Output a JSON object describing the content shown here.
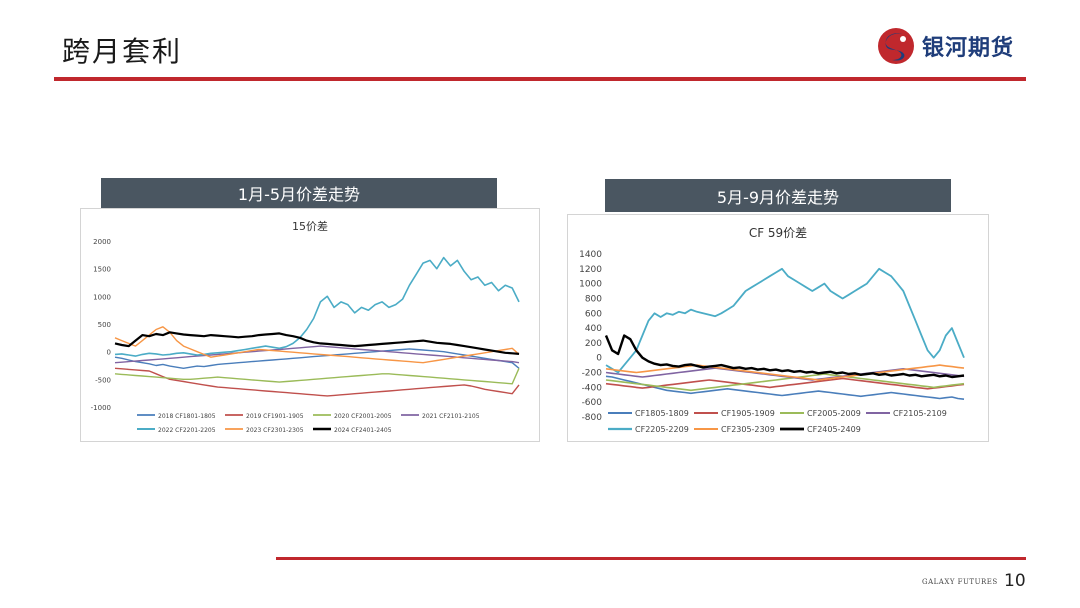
{
  "page": {
    "title": "跨月套利",
    "brand": "银河期货",
    "footer_brand": "GALAXY FUTURES",
    "page_number": "10",
    "colors": {
      "accent": "#c0282d",
      "banner": "#4a5661",
      "brand": "#1f3d7a"
    }
  },
  "left_banner": "1月-5月价差走势",
  "right_banner": "5月-9月价差走势",
  "chart_data": [
    {
      "type": "line",
      "title": "15价差",
      "xlabel": "",
      "ylabel": "",
      "ylim": [
        -1000,
        2000
      ],
      "yticks": [
        -1000,
        -500,
        0,
        500,
        1000,
        1500,
        2000
      ],
      "grid": false,
      "legend": "bottom",
      "x_points": 60,
      "series": [
        {
          "name": "2018 CF1801-1805",
          "color": "#4a7ebb",
          "width": 1.4,
          "values": [
            -100,
            -120,
            -150,
            -180,
            -200,
            -220,
            -250,
            -230,
            -260,
            -280,
            -300,
            -280,
            -260,
            -270,
            -250,
            -230,
            -220,
            -210,
            -200,
            -190,
            -180,
            -170,
            -160,
            -150,
            -140,
            -130,
            -120,
            -110,
            -100,
            -90,
            -80,
            -70,
            -60,
            -50,
            -40,
            -30,
            -20,
            -10,
            0,
            10,
            20,
            30,
            40,
            50,
            40,
            30,
            20,
            10,
            0,
            -20,
            -40,
            -60,
            -80,
            -100,
            -120,
            -140,
            -160,
            -180,
            -200,
            -300
          ]
        },
        {
          "name": "2019 CF1901-1905",
          "color": "#c0504d",
          "width": 1.4,
          "values": [
            -300,
            -310,
            -320,
            -330,
            -340,
            -350,
            -400,
            -450,
            -500,
            -520,
            -540,
            -560,
            -580,
            -600,
            -620,
            -640,
            -650,
            -660,
            -670,
            -680,
            -690,
            -700,
            -710,
            -720,
            -730,
            -740,
            -750,
            -760,
            -770,
            -780,
            -790,
            -800,
            -790,
            -780,
            -770,
            -760,
            -750,
            -740,
            -730,
            -720,
            -710,
            -700,
            -690,
            -680,
            -670,
            -660,
            -650,
            -640,
            -630,
            -620,
            -610,
            -600,
            -620,
            -650,
            -680,
            -700,
            -720,
            -740,
            -760,
            -600
          ]
        },
        {
          "name": "2020 CF2001-2005",
          "color": "#9bbb59",
          "width": 1.4,
          "values": [
            -400,
            -410,
            -420,
            -430,
            -440,
            -450,
            -460,
            -470,
            -480,
            -490,
            -500,
            -500,
            -490,
            -480,
            -470,
            -460,
            -470,
            -480,
            -490,
            -500,
            -510,
            -520,
            -530,
            -540,
            -550,
            -540,
            -530,
            -520,
            -510,
            -500,
            -490,
            -480,
            -470,
            -460,
            -450,
            -440,
            -430,
            -420,
            -410,
            -400,
            -400,
            -410,
            -420,
            -430,
            -440,
            -450,
            -460,
            -470,
            -480,
            -490,
            -500,
            -510,
            -520,
            -530,
            -540,
            -550,
            -560,
            -570,
            -580,
            -300
          ]
        },
        {
          "name": "2021 CF2101-2105",
          "color": "#8064a2",
          "width": 1.4,
          "values": [
            -200,
            -190,
            -180,
            -170,
            -160,
            -150,
            -140,
            -130,
            -120,
            -110,
            -100,
            -90,
            -80,
            -70,
            -60,
            -50,
            -40,
            -30,
            -20,
            -10,
            0,
            10,
            20,
            30,
            40,
            50,
            60,
            70,
            80,
            90,
            100,
            90,
            80,
            70,
            60,
            50,
            40,
            30,
            20,
            10,
            0,
            -10,
            -20,
            -30,
            -40,
            -50,
            -60,
            -70,
            -80,
            -90,
            -100,
            -110,
            -120,
            -130,
            -140,
            -150,
            -160,
            -170,
            -180,
            -200
          ]
        },
        {
          "name": "2022 CF2201-2205",
          "color": "#4bacc6",
          "width": 1.6,
          "values": [
            -50,
            -40,
            -60,
            -80,
            -50,
            -30,
            -40,
            -60,
            -50,
            -30,
            -20,
            -40,
            -60,
            -50,
            -30,
            -20,
            -10,
            0,
            20,
            40,
            60,
            80,
            100,
            80,
            60,
            90,
            150,
            250,
            400,
            600,
            900,
            1000,
            800,
            900,
            850,
            700,
            800,
            750,
            850,
            900,
            800,
            850,
            950,
            1200,
            1400,
            1600,
            1650,
            1500,
            1700,
            1550,
            1650,
            1450,
            1300,
            1350,
            1200,
            1250,
            1100,
            1200,
            1150,
            900
          ]
        },
        {
          "name": "2023 CF2301-2305",
          "color": "#f79646",
          "width": 1.4,
          "values": [
            250,
            200,
            150,
            100,
            200,
            300,
            400,
            450,
            350,
            200,
            100,
            50,
            0,
            -50,
            -100,
            -80,
            -60,
            -40,
            -20,
            0,
            20,
            40,
            30,
            20,
            10,
            0,
            -10,
            -20,
            -30,
            -40,
            -50,
            -60,
            -70,
            -80,
            -90,
            -100,
            -110,
            -120,
            -130,
            -140,
            -150,
            -160,
            -170,
            -180,
            -190,
            -200,
            -180,
            -160,
            -140,
            -120,
            -100,
            -80,
            -60,
            -40,
            -20,
            0,
            20,
            40,
            60,
            -50
          ]
        },
        {
          "name": "2024 CF2401-2405",
          "color": "#000000",
          "width": 2.2,
          "values": [
            150,
            120,
            100,
            200,
            300,
            280,
            320,
            300,
            350,
            330,
            310,
            300,
            290,
            280,
            300,
            290,
            280,
            270,
            260,
            270,
            280,
            300,
            310,
            320,
            330,
            300,
            280,
            250,
            200,
            170,
            150,
            140,
            130,
            120,
            110,
            100,
            110,
            120,
            130,
            140,
            150,
            160,
            170,
            180,
            190,
            200,
            180,
            160,
            150,
            140,
            120,
            100,
            80,
            60,
            40,
            20,
            0,
            -20,
            -30,
            -40
          ]
        }
      ]
    },
    {
      "type": "line",
      "title": "CF 59价差",
      "xlabel": "",
      "ylabel": "",
      "ylim": [
        -800,
        1400
      ],
      "yticks": [
        -800,
        -600,
        -400,
        -200,
        0,
        200,
        400,
        600,
        800,
        1000,
        1200,
        1400
      ],
      "grid": false,
      "legend": "bottom",
      "x_points": 60,
      "series": [
        {
          "name": "CF1805-1809",
          "color": "#4a7ebb",
          "width": 1.6,
          "values": [
            -250,
            -260,
            -280,
            -300,
            -320,
            -340,
            -360,
            -380,
            -400,
            -420,
            -440,
            -450,
            -460,
            -470,
            -480,
            -470,
            -460,
            -450,
            -440,
            -430,
            -420,
            -430,
            -440,
            -450,
            -460,
            -470,
            -480,
            -490,
            -500,
            -510,
            -500,
            -490,
            -480,
            -470,
            -460,
            -450,
            -460,
            -470,
            -480,
            -490,
            -500,
            -510,
            -520,
            -510,
            -500,
            -490,
            -480,
            -470,
            -480,
            -490,
            -500,
            -510,
            -520,
            -530,
            -540,
            -550,
            -540,
            -530,
            -550,
            -560
          ]
        },
        {
          "name": "CF1905-1909",
          "color": "#c0504d",
          "width": 1.6,
          "values": [
            -350,
            -360,
            -370,
            -380,
            -390,
            -400,
            -410,
            -400,
            -390,
            -380,
            -370,
            -360,
            -350,
            -340,
            -330,
            -320,
            -310,
            -300,
            -310,
            -320,
            -330,
            -340,
            -350,
            -360,
            -370,
            -380,
            -390,
            -400,
            -390,
            -380,
            -370,
            -360,
            -350,
            -340,
            -330,
            -320,
            -310,
            -300,
            -290,
            -280,
            -290,
            -300,
            -310,
            -320,
            -330,
            -340,
            -350,
            -360,
            -370,
            -380,
            -390,
            -400,
            -410,
            -420,
            -410,
            -400,
            -390,
            -380,
            -370,
            -360
          ]
        },
        {
          "name": "CF2005-2009",
          "color": "#9bbb59",
          "width": 1.6,
          "values": [
            -300,
            -310,
            -320,
            -330,
            -340,
            -350,
            -360,
            -370,
            -380,
            -390,
            -400,
            -410,
            -420,
            -430,
            -440,
            -430,
            -420,
            -410,
            -400,
            -390,
            -380,
            -370,
            -360,
            -350,
            -340,
            -330,
            -320,
            -310,
            -300,
            -290,
            -280,
            -270,
            -260,
            -250,
            -240,
            -230,
            -220,
            -230,
            -240,
            -250,
            -260,
            -270,
            -280,
            -290,
            -300,
            -310,
            -320,
            -330,
            -340,
            -350,
            -360,
            -370,
            -380,
            -390,
            -400,
            -390,
            -380,
            -370,
            -360,
            -350
          ]
        },
        {
          "name": "CF2105-2109",
          "color": "#8064a2",
          "width": 1.6,
          "values": [
            -200,
            -210,
            -220,
            -230,
            -240,
            -250,
            -260,
            -250,
            -240,
            -230,
            -220,
            -210,
            -200,
            -190,
            -180,
            -170,
            -160,
            -150,
            -140,
            -150,
            -160,
            -170,
            -180,
            -190,
            -200,
            -210,
            -220,
            -230,
            -240,
            -250,
            -260,
            -270,
            -280,
            -290,
            -300,
            -290,
            -280,
            -270,
            -260,
            -250,
            -240,
            -230,
            -220,
            -210,
            -200,
            -190,
            -180,
            -170,
            -160,
            -150,
            -160,
            -170,
            -180,
            -190,
            -200,
            -210,
            -220,
            -230,
            -240,
            -250
          ]
        },
        {
          "name": "CF2205-2209",
          "color": "#4bacc6",
          "width": 1.8,
          "values": [
            -100,
            -150,
            -200,
            -100,
            0,
            100,
            300,
            500,
            600,
            550,
            600,
            580,
            620,
            600,
            650,
            620,
            600,
            580,
            560,
            600,
            650,
            700,
            800,
            900,
            950,
            1000,
            1050,
            1100,
            1150,
            1200,
            1100,
            1050,
            1000,
            950,
            900,
            950,
            1000,
            900,
            850,
            800,
            850,
            900,
            950,
            1000,
            1100,
            1200,
            1150,
            1100,
            1000,
            900,
            700,
            500,
            300,
            100,
            0,
            100,
            300,
            400,
            200,
            0
          ]
        },
        {
          "name": "CF2305-2309",
          "color": "#f79646",
          "width": 1.6,
          "values": [
            -150,
            -160,
            -170,
            -180,
            -190,
            -200,
            -190,
            -180,
            -170,
            -160,
            -150,
            -140,
            -130,
            -120,
            -110,
            -100,
            -110,
            -120,
            -130,
            -140,
            -150,
            -160,
            -170,
            -180,
            -190,
            -200,
            -210,
            -220,
            -230,
            -240,
            -250,
            -260,
            -270,
            -280,
            -290,
            -300,
            -290,
            -280,
            -270,
            -260,
            -250,
            -240,
            -230,
            -220,
            -210,
            -200,
            -190,
            -180,
            -170,
            -160,
            -150,
            -140,
            -130,
            -120,
            -110,
            -100,
            -110,
            -120,
            -130,
            -140
          ]
        },
        {
          "name": "CF2405-2409",
          "color": "#000000",
          "width": 2.4,
          "values": [
            300,
            100,
            50,
            300,
            250,
            100,
            0,
            -50,
            -80,
            -100,
            -90,
            -110,
            -120,
            -100,
            -90,
            -110,
            -130,
            -120,
            -110,
            -100,
            -120,
            -140,
            -130,
            -150,
            -140,
            -160,
            -150,
            -170,
            -160,
            -180,
            -170,
            -190,
            -180,
            -200,
            -190,
            -210,
            -200,
            -190,
            -210,
            -200,
            -220,
            -210,
            -230,
            -220,
            -210,
            -230,
            -220,
            -240,
            -230,
            -220,
            -240,
            -230,
            -250,
            -240,
            -230,
            -250,
            -240,
            -260,
            -250,
            -240
          ]
        }
      ]
    }
  ]
}
